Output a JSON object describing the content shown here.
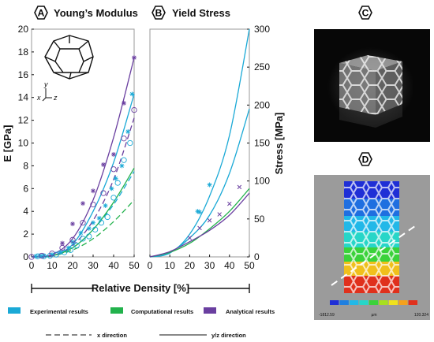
{
  "panels": {
    "a": {
      "letter": "A",
      "title": "Young’s Modulus"
    },
    "b": {
      "letter": "B",
      "title": "Yield Stress"
    },
    "c": {
      "letter": "C"
    },
    "d": {
      "letter": "D"
    }
  },
  "axis_titles": {
    "left_y": "E [GPa]",
    "right_y": "Stress [MPa]",
    "x": "Relative Density [%]"
  },
  "unit_cell": {
    "axis_x": "x",
    "axis_y": "y",
    "axis_z": "z"
  },
  "legend": {
    "experimental": "Experimental results",
    "computational": "Computational results",
    "analytical": "Analytical results",
    "x_direction": "x direction",
    "yz_direction": "y/z direction"
  },
  "colors": {
    "experimental": "#1aa9d6",
    "computational": "#22b24c",
    "analytical": "#6a3fa0"
  },
  "colorbar": {
    "min_label": "-1812.59",
    "unit_label": "µm",
    "max_label": "120.324",
    "colors": [
      "#1f2fd6",
      "#1f7fe0",
      "#22b8e8",
      "#27d6c8",
      "#3ad23a",
      "#a7df1e",
      "#f0e21c",
      "#f5a11c",
      "#e0301c"
    ]
  },
  "chart_data": [
    {
      "type": "line",
      "title": "Young’s Modulus",
      "xlabel": "Relative Density [%]",
      "ylabel": "E [GPa]",
      "xlim": [
        0,
        50
      ],
      "ylim": [
        0,
        20
      ],
      "xticks": [
        0,
        10,
        20,
        30,
        40,
        50
      ],
      "yticks": [
        0,
        2,
        4,
        6,
        8,
        10,
        12,
        14,
        16,
        18,
        20
      ],
      "series": [
        {
          "name": "Experimental results",
          "direction": "y/z direction",
          "style": "solid",
          "x": [
            0,
            10,
            20,
            30,
            40,
            50
          ],
          "y": [
            0,
            0.1,
            1.1,
            4.0,
            8.3,
            14.3
          ]
        },
        {
          "name": "Experimental results",
          "direction": "x direction",
          "style": "dashed",
          "x": [
            0,
            10,
            20,
            30,
            40,
            50
          ],
          "y": [
            0,
            0.1,
            0.8,
            2.4,
            4.6,
            7.5
          ]
        },
        {
          "name": "Computational results",
          "direction": "y/z direction",
          "style": "solid",
          "x": [
            0,
            10,
            20,
            30,
            40,
            50
          ],
          "y": [
            0,
            0.1,
            0.8,
            2.4,
            4.8,
            7.8
          ]
        },
        {
          "name": "Computational results",
          "direction": "x direction",
          "style": "dashed",
          "x": [
            0,
            10,
            20,
            30,
            40,
            50
          ],
          "y": [
            0,
            0.1,
            0.6,
            1.6,
            3.1,
            5.0
          ]
        },
        {
          "name": "Analytical results",
          "direction": "y/z direction",
          "style": "solid",
          "x": [
            0,
            10,
            20,
            30,
            40,
            50
          ],
          "y": [
            0,
            0.2,
            1.6,
            5.0,
            10.5,
            17.5
          ]
        },
        {
          "name": "Analytical results",
          "direction": "x direction",
          "style": "dashed",
          "x": [
            0,
            10,
            20,
            30,
            40,
            50
          ],
          "y": [
            0,
            0.1,
            1.0,
            3.2,
            6.8,
            12.2
          ]
        },
        {
          "name": "Experimental results",
          "direction": "y/z direction",
          "style": "markers-star",
          "x": [
            2,
            4,
            6,
            10,
            14,
            18,
            20,
            24,
            28,
            30,
            33,
            36,
            39,
            41,
            44,
            47,
            49
          ],
          "y": [
            0.05,
            0.1,
            0.1,
            0.2,
            0.4,
            0.8,
            1.3,
            2.1,
            2.5,
            3.0,
            3.4,
            4.5,
            6.0,
            6.9,
            8.0,
            11.0,
            14.3
          ]
        },
        {
          "name": "Experimental results",
          "direction": "x direction",
          "style": "markers-circle",
          "x": [
            3,
            6,
            9,
            12,
            16,
            19,
            22,
            25,
            28,
            31,
            34,
            37,
            40,
            42,
            45,
            48
          ],
          "y": [
            0.05,
            0.05,
            0.1,
            0.2,
            0.4,
            0.6,
            1.0,
            1.6,
            1.8,
            2.4,
            3.0,
            3.5,
            5.2,
            6.5,
            8.5,
            10.0
          ]
        },
        {
          "name": "Analytical results",
          "direction": "y/z direction",
          "style": "markers-star",
          "x": [
            15,
            20,
            25,
            30,
            35,
            40,
            45,
            50
          ],
          "y": [
            1.2,
            2.9,
            4.7,
            5.8,
            8.1,
            9.0,
            13.5,
            17.5
          ]
        },
        {
          "name": "Analytical results",
          "direction": "x direction",
          "style": "markers-circle",
          "x": [
            0,
            5,
            10,
            15,
            20,
            25,
            30,
            35,
            40,
            45,
            50
          ],
          "y": [
            0,
            0.1,
            0.3,
            0.8,
            1.5,
            3.0,
            4.6,
            5.6,
            7.7,
            10.4,
            12.9
          ]
        }
      ]
    },
    {
      "type": "line",
      "title": "Yield Stress",
      "xlabel": "Relative Density [%]",
      "ylabel": "Stress [MPa]",
      "xlim": [
        0,
        50
      ],
      "ylim": [
        0,
        300
      ],
      "xticks": [
        0,
        10,
        20,
        30,
        40,
        50
      ],
      "yticks": [
        0,
        50,
        100,
        150,
        200,
        250,
        300
      ],
      "series": [
        {
          "name": "Experimental results",
          "direction": "y/z direction",
          "style": "solid",
          "x": [
            0,
            10,
            20,
            30,
            40,
            50
          ],
          "y": [
            0,
            5,
            30,
            80,
            160,
            300
          ]
        },
        {
          "name": "Experimental results",
          "direction": "x direction",
          "style": "solid",
          "x": [
            0,
            10,
            20,
            30,
            40,
            50
          ],
          "y": [
            0,
            6,
            25,
            55,
            110,
            195
          ]
        },
        {
          "name": "Computational results",
          "direction": "y/z direction",
          "style": "solid",
          "x": [
            0,
            10,
            20,
            30,
            40,
            50
          ],
          "y": [
            0,
            6,
            18,
            37,
            60,
            90
          ]
        },
        {
          "name": "Analytical results",
          "direction": "y/z direction",
          "style": "solid",
          "x": [
            0,
            10,
            20,
            30,
            40,
            50
          ],
          "y": [
            0,
            7,
            20,
            35,
            55,
            84
          ]
        },
        {
          "name": "Experimental results",
          "direction": "y/z direction",
          "style": "markers-star",
          "x": [
            24,
            25,
            30
          ],
          "y": [
            60,
            59,
            95
          ]
        },
        {
          "name": "Analytical results",
          "direction": "x direction",
          "style": "markers-x",
          "x": [
            20,
            25,
            30,
            35,
            40,
            45
          ],
          "y": [
            25,
            38,
            48,
            56,
            70,
            92
          ]
        }
      ]
    }
  ]
}
